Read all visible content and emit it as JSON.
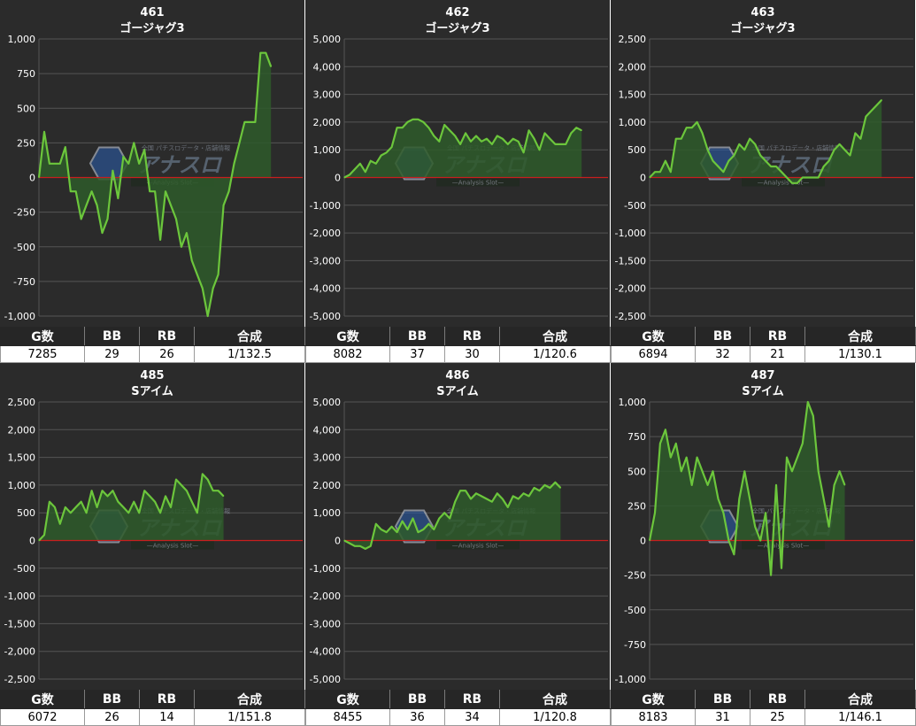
{
  "panels": [
    {
      "machine_number": "461",
      "machine_name": "ゴージャグ3",
      "stats": {
        "headers": [
          "G数",
          "BB",
          "RB",
          "合成"
        ],
        "values": [
          "7285",
          "29",
          "26",
          "1/132.5"
        ]
      },
      "chart_data": {
        "type": "area",
        "title": "461 ゴージャグ3",
        "ylim": [
          -1000,
          1000
        ],
        "yticks": [
          -1000,
          -750,
          -500,
          -250,
          0,
          250,
          500,
          750,
          1000
        ],
        "ytick_labels": [
          "-1,000",
          "-750",
          "-500",
          "-250",
          "0",
          "250",
          "500",
          "750",
          "1,000"
        ],
        "xlim": [
          0,
          100
        ],
        "series": [
          {
            "x": [
              0,
              2,
              4,
              6,
              8,
              10,
              12,
              14,
              16,
              18,
              20,
              22,
              24,
              26,
              28,
              30,
              32,
              34,
              36,
              38,
              40,
              42,
              44,
              46,
              48,
              50,
              52,
              54,
              56,
              58,
              60,
              62,
              64,
              66,
              68,
              70,
              72,
              74,
              76,
              78,
              80,
              82,
              84,
              86,
              88,
              90,
              92,
              94,
              96,
              98,
              100
            ],
            "values": [
              0,
              330,
              100,
              100,
              100,
              220,
              -100,
              -100,
              -300,
              -200,
              -100,
              -200,
              -400,
              -300,
              50,
              -150,
              150,
              100,
              250,
              100,
              200,
              -100,
              -100,
              -450,
              -100,
              -200,
              -300,
              -500,
              -400,
              -600,
              -700,
              -800,
              -1000,
              -800,
              -700,
              -200,
              -100,
              100,
              250,
              400,
              400,
              400,
              900,
              900,
              800,
              null,
              null,
              null,
              null,
              null,
              null
            ]
          }
        ]
      }
    },
    {
      "machine_number": "462",
      "machine_name": "ゴージャグ3",
      "stats": {
        "headers": [
          "G数",
          "BB",
          "RB",
          "合成"
        ],
        "values": [
          "8082",
          "37",
          "30",
          "1/120.6"
        ]
      },
      "chart_data": {
        "type": "area",
        "title": "462 ゴージャグ3",
        "ylim": [
          -5000,
          5000
        ],
        "yticks": [
          -5000,
          -4000,
          -3000,
          -2000,
          -1000,
          0,
          1000,
          2000,
          3000,
          4000,
          5000
        ],
        "ytick_labels": [
          "-5,000",
          "-4,000",
          "-3,000",
          "-2,000",
          "-1,000",
          "0",
          "1,000",
          "2,000",
          "3,000",
          "4,000",
          "5,000"
        ],
        "xlim": [
          0,
          100
        ],
        "series": [
          {
            "x": [
              0,
              2,
              4,
              6,
              8,
              10,
              12,
              14,
              16,
              18,
              20,
              22,
              24,
              26,
              28,
              30,
              32,
              34,
              36,
              38,
              40,
              42,
              44,
              46,
              48,
              50,
              52,
              54,
              56,
              58,
              60,
              62,
              64,
              66,
              68,
              70,
              72,
              74,
              76,
              78,
              80,
              82,
              84,
              86,
              88,
              90,
              92,
              94,
              96,
              98,
              100
            ],
            "values": [
              0,
              100,
              300,
              500,
              200,
              600,
              500,
              800,
              900,
              1100,
              1800,
              1800,
              2000,
              2100,
              2100,
              2000,
              1800,
              1500,
              1300,
              1900,
              1700,
              1500,
              1200,
              1600,
              1300,
              1500,
              1300,
              1400,
              1200,
              1500,
              1400,
              1200,
              1400,
              1300,
              900,
              1700,
              1400,
              1000,
              1600,
              1400,
              1200,
              1200,
              1200,
              1600,
              1800,
              1700,
              null,
              null,
              null,
              null,
              null
            ]
          }
        ]
      }
    },
    {
      "machine_number": "463",
      "machine_name": "ゴージャグ3",
      "stats": {
        "headers": [
          "G数",
          "BB",
          "RB",
          "合成"
        ],
        "values": [
          "6894",
          "32",
          "21",
          "1/130.1"
        ]
      },
      "chart_data": {
        "type": "area",
        "title": "463 ゴージャグ3",
        "ylim": [
          -2500,
          2500
        ],
        "yticks": [
          -2500,
          -2000,
          -1500,
          -1000,
          -500,
          0,
          500,
          1000,
          1500,
          2000,
          2500
        ],
        "ytick_labels": [
          "-2,500",
          "-2,000",
          "-1,500",
          "-1,000",
          "-500",
          "0",
          "500",
          "1,000",
          "1,500",
          "2,000",
          "2,500"
        ],
        "xlim": [
          0,
          100
        ],
        "series": [
          {
            "x": [
              0,
              2,
              4,
              6,
              8,
              10,
              12,
              14,
              16,
              18,
              20,
              22,
              24,
              26,
              28,
              30,
              32,
              34,
              36,
              38,
              40,
              42,
              44,
              46,
              48,
              50,
              52,
              54,
              56,
              58,
              60,
              62,
              64,
              66,
              68,
              70,
              72,
              74,
              76,
              78,
              80,
              82,
              84,
              86,
              88,
              90,
              92,
              94,
              96,
              98,
              100
            ],
            "values": [
              0,
              100,
              100,
              300,
              100,
              700,
              700,
              900,
              900,
              1000,
              800,
              500,
              300,
              200,
              100,
              300,
              400,
              600,
              500,
              700,
              600,
              400,
              300,
              200,
              200,
              100,
              0,
              -100,
              -100,
              0,
              0,
              0,
              0,
              200,
              300,
              500,
              600,
              500,
              400,
              800,
              700,
              1100,
              1200,
              1300,
              1400,
              null,
              null,
              null,
              null,
              null,
              null
            ]
          }
        ]
      }
    },
    {
      "machine_number": "485",
      "machine_name": "Sアイム",
      "stats": {
        "headers": [
          "G数",
          "BB",
          "RB",
          "合成"
        ],
        "values": [
          "6072",
          "26",
          "14",
          "1/151.8"
        ]
      },
      "chart_data": {
        "type": "area",
        "title": "485 Sアイム",
        "ylim": [
          -2500,
          2500
        ],
        "yticks": [
          -2500,
          -2000,
          -1500,
          -1000,
          -500,
          0,
          500,
          1000,
          1500,
          2000,
          2500
        ],
        "ytick_labels": [
          "-2,500",
          "-2,000",
          "-1,500",
          "-1,000",
          "-500",
          "0",
          "500",
          "1,000",
          "1,500",
          "2,000",
          "2,500"
        ],
        "xlim": [
          0,
          100
        ],
        "series": [
          {
            "x": [
              0,
              2,
              4,
              6,
              8,
              10,
              12,
              14,
              16,
              18,
              20,
              22,
              24,
              26,
              28,
              30,
              32,
              34,
              36,
              38,
              40,
              42,
              44,
              46,
              48,
              50,
              52,
              54,
              56,
              58,
              60,
              62,
              64,
              66,
              68,
              70,
              72,
              74,
              76,
              78,
              80,
              82,
              84,
              86,
              88,
              90,
              92,
              94,
              96,
              98,
              100
            ],
            "values": [
              0,
              100,
              700,
              600,
              300,
              600,
              500,
              600,
              700,
              500,
              900,
              600,
              900,
              800,
              900,
              700,
              600,
              500,
              700,
              500,
              900,
              800,
              700,
              500,
              800,
              600,
              1100,
              1000,
              900,
              700,
              500,
              1200,
              1100,
              900,
              900,
              800,
              null,
              null,
              null,
              null,
              null,
              null,
              null,
              null,
              null,
              null,
              null,
              null,
              null,
              null,
              null
            ]
          }
        ]
      }
    },
    {
      "machine_number": "486",
      "machine_name": "Sアイム",
      "stats": {
        "headers": [
          "G数",
          "BB",
          "RB",
          "合成"
        ],
        "values": [
          "8455",
          "36",
          "34",
          "1/120.8"
        ]
      },
      "chart_data": {
        "type": "area",
        "title": "486 Sアイム",
        "ylim": [
          -5000,
          5000
        ],
        "yticks": [
          -5000,
          -4000,
          -3000,
          -2000,
          -1000,
          0,
          1000,
          2000,
          3000,
          4000,
          5000
        ],
        "ytick_labels": [
          "-5,000",
          "-4,000",
          "-3,000",
          "-2,000",
          "-1,000",
          "0",
          "1,000",
          "2,000",
          "3,000",
          "4,000",
          "5,000"
        ],
        "xlim": [
          0,
          100
        ],
        "series": [
          {
            "x": [
              0,
              2,
              4,
              6,
              8,
              10,
              12,
              14,
              16,
              18,
              20,
              22,
              24,
              26,
              28,
              30,
              32,
              34,
              36,
              38,
              40,
              42,
              44,
              46,
              48,
              50,
              52,
              54,
              56,
              58,
              60,
              62,
              64,
              66,
              68,
              70,
              72,
              74,
              76,
              78,
              80,
              82,
              84,
              86,
              88,
              90,
              92,
              94,
              96,
              98,
              100
            ],
            "values": [
              0,
              -100,
              -200,
              -200,
              -300,
              -200,
              600,
              400,
              300,
              500,
              300,
              700,
              400,
              800,
              300,
              400,
              600,
              400,
              800,
              1000,
              800,
              1400,
              1800,
              1800,
              1500,
              1700,
              1600,
              1500,
              1400,
              1700,
              1500,
              1200,
              1600,
              1500,
              1700,
              1600,
              1900,
              1800,
              2000,
              1900,
              2100,
              1900,
              null,
              null,
              null,
              null,
              null,
              null,
              null,
              null,
              null
            ]
          }
        ]
      }
    },
    {
      "machine_number": "487",
      "machine_name": "Sアイム",
      "stats": {
        "headers": [
          "G数",
          "BB",
          "RB",
          "合成"
        ],
        "values": [
          "8183",
          "31",
          "25",
          "1/146.1"
        ]
      },
      "chart_data": {
        "type": "area",
        "title": "487 Sアイム",
        "ylim": [
          -1000,
          1000
        ],
        "yticks": [
          -1000,
          -750,
          -500,
          -250,
          0,
          250,
          500,
          750,
          1000
        ],
        "ytick_labels": [
          "-1,000",
          "-750",
          "-500",
          "-250",
          "0",
          "250",
          "500",
          "750",
          "1,000"
        ],
        "xlim": [
          0,
          100
        ],
        "series": [
          {
            "x": [
              0,
              2,
              4,
              6,
              8,
              10,
              12,
              14,
              16,
              18,
              20,
              22,
              24,
              26,
              28,
              30,
              32,
              34,
              36,
              38,
              40,
              42,
              44,
              46,
              48,
              50,
              52,
              54,
              56,
              58,
              60,
              62,
              64,
              66,
              68,
              70,
              72,
              74,
              76,
              78,
              80,
              82,
              84,
              86,
              88,
              90,
              92,
              94,
              96,
              98,
              100
            ],
            "values": [
              0,
              200,
              700,
              800,
              600,
              700,
              500,
              600,
              400,
              600,
              500,
              400,
              500,
              300,
              200,
              0,
              -100,
              300,
              500,
              300,
              100,
              0,
              200,
              -250,
              400,
              -200,
              600,
              500,
              600,
              700,
              1000,
              900,
              500,
              300,
              100,
              400,
              500,
              400,
              null,
              null,
              null,
              null,
              null,
              null,
              null,
              null,
              null,
              null,
              null,
              null,
              null
            ]
          }
        ]
      }
    }
  ],
  "watermark": {
    "logo_text": "アナスロ",
    "tagline": "—Analysis Slot—",
    "top_text": "全国 パチスロデータ・店舗情報"
  },
  "colors": {
    "panel_bg": "#2b2b2b",
    "line": "#6cc63c",
    "area": "#2e5a2a",
    "zero_line": "#c81e1e",
    "grid": "#555555",
    "text": "#ffffff"
  }
}
